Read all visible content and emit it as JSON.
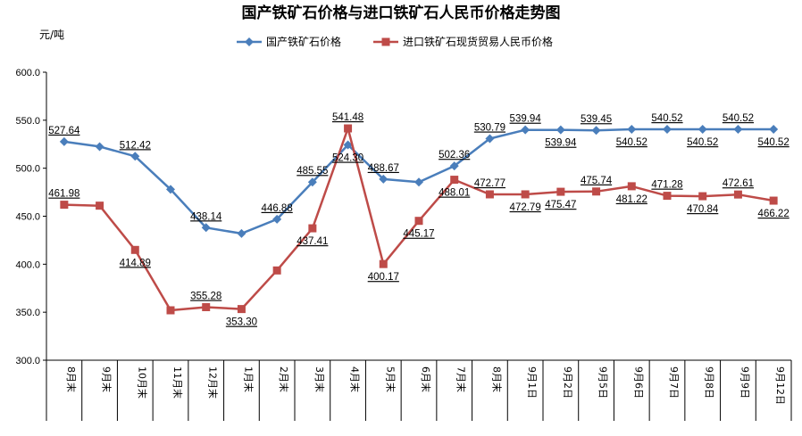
{
  "chart_data": {
    "type": "line",
    "title": "国产铁矿石价格与进口铁矿石人民币价格走势图",
    "ylabel": "元/吨",
    "xlabel": "",
    "ylim": [
      300,
      600
    ],
    "yticks": [
      "300.0",
      "350.0",
      "400.0",
      "450.0",
      "500.0",
      "550.0",
      "600.0"
    ],
    "categories": [
      "8月末",
      "9月末",
      "10月末",
      "11月末",
      "12月末",
      "1月末",
      "2月末",
      "3月末",
      "4月末",
      "5月末",
      "6月末",
      "7月末",
      "8月末",
      "9月1日",
      "9月2日",
      "9月5日",
      "9月6日",
      "9月7日",
      "9月8日",
      "9月9日",
      "9月12日"
    ],
    "legend_position": "top",
    "grid": false,
    "series": [
      {
        "name": "国产铁矿石价格",
        "color": "#4a7ebb",
        "marker": "diamond",
        "values": [
          527.64,
          522.5,
          512.42,
          478.0,
          438.14,
          432.0,
          446.88,
          485.55,
          524.3,
          488.67,
          485.5,
          502.36,
          530.79,
          539.94,
          539.94,
          539.45,
          540.52,
          540.52,
          540.52,
          540.52,
          540.52
        ],
        "labels": [
          "527.64",
          "",
          "512.42",
          "",
          "438.14",
          "",
          "446.88",
          "485.55",
          "524.30",
          "488.67",
          "",
          "502.36",
          "530.79",
          "539.94",
          "539.94",
          "539.45",
          "540.52",
          "540.52",
          "540.52",
          "540.52",
          "540.52"
        ]
      },
      {
        "name": "进口铁矿石现货贸易人民币价格",
        "color": "#be4b48",
        "marker": "square",
        "values": [
          461.98,
          461.0,
          414.89,
          352.0,
          355.28,
          353.3,
          393.5,
          437.41,
          541.48,
          400.17,
          445.17,
          488.01,
          472.77,
          472.79,
          475.47,
          475.74,
          481.22,
          471.28,
          470.84,
          472.61,
          466.22
        ],
        "labels": [
          "461.98",
          "",
          "414.89",
          "",
          "355.28",
          "353.30",
          "",
          "437.41",
          "541.48",
          "400.17",
          "445.17",
          "488.01",
          "472.77",
          "472.79",
          "475.47",
          "475.74",
          "481.22",
          "471.28",
          "470.84",
          "472.61",
          "466.22"
        ]
      }
    ]
  }
}
